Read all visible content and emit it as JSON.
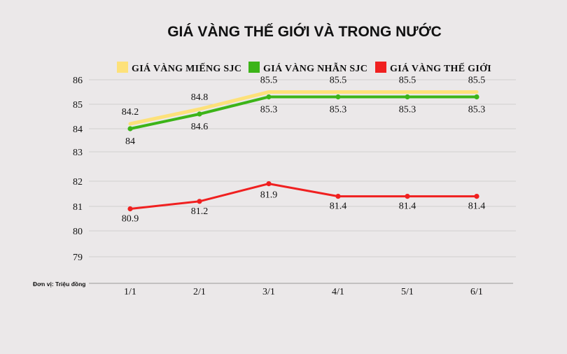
{
  "chart_data": {
    "type": "line",
    "title": "GIÁ VÀNG THẾ GIỚI VÀ TRONG NƯỚC",
    "unit_note": "Đơn vị: Triệu đồng",
    "x": [
      "1/1",
      "2/1",
      "3/1",
      "4/1",
      "5/1",
      "6/1"
    ],
    "y_ticks": [
      "79",
      "80",
      "81",
      "82",
      "83",
      "84",
      "85",
      "86"
    ],
    "series": [
      {
        "name": "GIÁ VÀNG MIẾNG SJC",
        "color": "#fde17a",
        "values": [
          84.2,
          84.8,
          85.5,
          85.5,
          85.5,
          85.5
        ],
        "marker": false
      },
      {
        "name": "GIÁ VÀNG NHẪN SJC",
        "color": "#3cb418",
        "values": [
          84,
          84.6,
          85.3,
          85.3,
          85.3,
          85.3
        ],
        "marker": true
      },
      {
        "name": "GIÁ VÀNG THẾ GIỚI",
        "color": "#f02020",
        "values": [
          80.9,
          81.2,
          81.9,
          81.4,
          81.4,
          81.4
        ],
        "marker": true
      }
    ],
    "data_labels": {
      "miengsjc": [
        "84.2",
        "84.8",
        "85.5",
        "85.5",
        "85.5",
        "85.5"
      ],
      "nhansjc": [
        "84",
        "84.6",
        "85.3",
        "85.3",
        "85.3",
        "85.3"
      ],
      "thegioi": [
        "80.9",
        "81.2",
        "81.9",
        "81.4",
        "81.4",
        "81.4"
      ]
    },
    "grid": true,
    "legend_position": "top"
  }
}
